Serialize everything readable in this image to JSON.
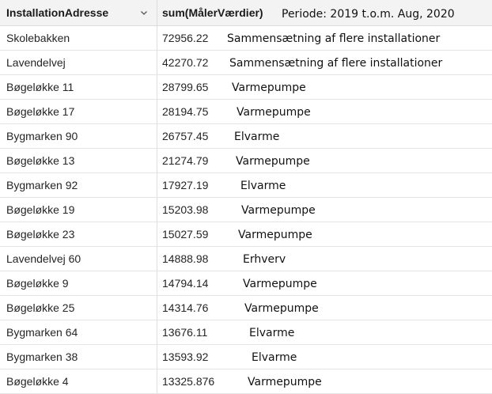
{
  "table": {
    "columns": [
      {
        "label": "InstallationAdresse"
      },
      {
        "label": "sum(MålerVærdier)"
      }
    ],
    "period_note": "Periode: 2019 t.o.m. Aug, 2020",
    "rows": [
      {
        "address": "Skolebakken",
        "sum": "72956.22",
        "note": "Sammensætning af flere installationer"
      },
      {
        "address": "Lavendelvej",
        "sum": "42270.72",
        "note": "Sammensætning af flere installationer"
      },
      {
        "address": "Bøgeløkke 11",
        "sum": "28799.65",
        "note": "Varmepumpe"
      },
      {
        "address": "Bøgeløkke 17",
        "sum": "28194.75",
        "note": "Varmepumpe"
      },
      {
        "address": "Bygmarken 90",
        "sum": "26757.45",
        "note": "Elvarme"
      },
      {
        "address": "Bøgeløkke 13",
        "sum": "21274.79",
        "note": "Varmepumpe"
      },
      {
        "address": "Bygmarken 92",
        "sum": "17927.19",
        "note": "Elvarme"
      },
      {
        "address": "Bøgeløkke 19",
        "sum": "15203.98",
        "note": "Varmepumpe"
      },
      {
        "address": "Bøgeløkke 23",
        "sum": "15027.59",
        "note": "Varmepumpe"
      },
      {
        "address": "Lavendelvej 60",
        "sum": "14888.98",
        "note": "Erhverv"
      },
      {
        "address": "Bøgeløkke 9",
        "sum": "14794.14",
        "note": "Varmepumpe"
      },
      {
        "address": "Bøgeløkke 25",
        "sum": "14314.76",
        "note": "Varmepumpe"
      },
      {
        "address": "Bygmarken 64",
        "sum": "13676.11",
        "note": "Elvarme"
      },
      {
        "address": "Bygmarken 38",
        "sum": "13593.92",
        "note": "Elvarme"
      },
      {
        "address": "Bøgeløkke 4",
        "sum": "13325.876",
        "note": "Varmepumpe"
      }
    ]
  },
  "icons": {
    "sort_dropdown": "chevron-down-icon"
  }
}
